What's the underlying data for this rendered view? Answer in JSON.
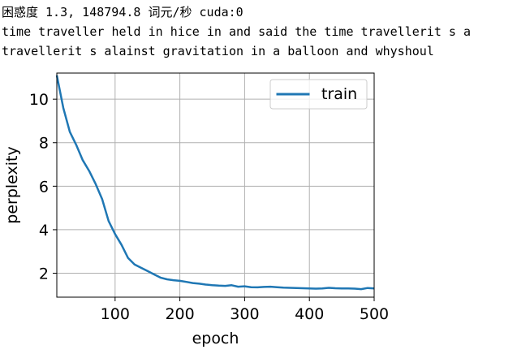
{
  "console": {
    "lines": [
      "困惑度 1.3, 148794.8 词元/秒 cuda:0",
      "time traveller held in hice in and said the time travellerit s a",
      "travellerit s alainst gravitation in a balloon and whyshoul"
    ]
  },
  "chart_data": {
    "type": "line",
    "title": "",
    "xlabel": "epoch",
    "ylabel": "perplexity",
    "xlim": [
      10,
      500
    ],
    "ylim": [
      0.9,
      11.2
    ],
    "xticks": [
      100,
      200,
      300,
      400,
      500
    ],
    "yticks": [
      2,
      4,
      6,
      8,
      10
    ],
    "grid": true,
    "legend": {
      "location": "top-right",
      "entries": [
        "train"
      ]
    },
    "series": [
      {
        "name": "train",
        "color": "#1f77b4",
        "x": [
          10,
          20,
          30,
          40,
          50,
          60,
          70,
          80,
          90,
          100,
          110,
          120,
          130,
          140,
          150,
          160,
          170,
          180,
          190,
          200,
          210,
          220,
          230,
          240,
          250,
          260,
          270,
          280,
          290,
          300,
          310,
          320,
          330,
          340,
          350,
          360,
          370,
          380,
          390,
          400,
          410,
          420,
          430,
          440,
          450,
          460,
          470,
          480,
          490,
          500
        ],
        "values": [
          11.1,
          9.6,
          8.5,
          7.9,
          7.2,
          6.7,
          6.1,
          5.4,
          4.4,
          3.8,
          3.3,
          2.7,
          2.4,
          2.25,
          2.1,
          1.95,
          1.8,
          1.72,
          1.68,
          1.65,
          1.6,
          1.55,
          1.52,
          1.48,
          1.45,
          1.43,
          1.42,
          1.45,
          1.38,
          1.4,
          1.36,
          1.35,
          1.37,
          1.38,
          1.36,
          1.34,
          1.33,
          1.32,
          1.31,
          1.3,
          1.29,
          1.3,
          1.33,
          1.31,
          1.3,
          1.3,
          1.29,
          1.27,
          1.32,
          1.3
        ]
      }
    ]
  }
}
